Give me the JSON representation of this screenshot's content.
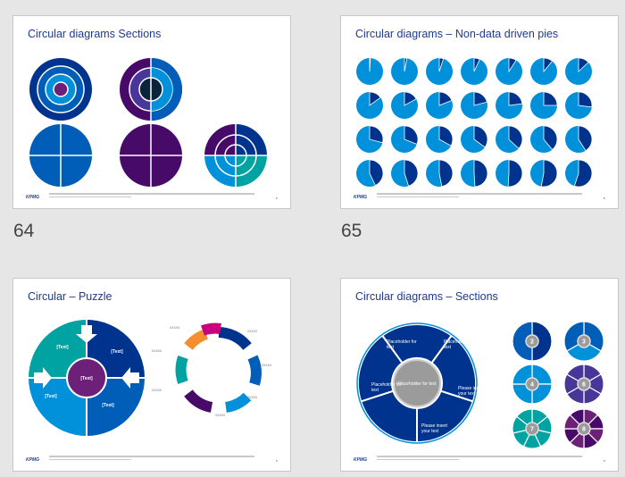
{
  "slides": [
    {
      "number": "64",
      "title": "Circular diagrams Sections"
    },
    {
      "number": "65",
      "title": "Circular diagrams  – Non-data driven pies"
    },
    {
      "number": "",
      "title": "Circular – Puzzle"
    },
    {
      "number": "",
      "title": "Circular diagrams – Sections"
    }
  ],
  "logo": "KPMG",
  "puzzle": {
    "piece_label": "[Text]",
    "arrow_label": "xxxxx"
  },
  "sections": {
    "segments": [
      "Placeholder for text",
      "Placeholder for text",
      "Please insert your text",
      "Please insert your text",
      "Placeholder for text"
    ],
    "center": "Placeholder for text",
    "small_numbers": [
      "2",
      "3",
      "4",
      "6",
      "7",
      "8"
    ]
  },
  "colors": {
    "navy": "#00338d",
    "blue": "#005eb8",
    "light_blue": "#0091da",
    "purple": "#470a68",
    "violet": "#483698",
    "teal": "#00a3a1"
  },
  "pies": {
    "color": "#0091da",
    "slice_color": "#00338d",
    "fractions": [
      0.01,
      0.03,
      0.05,
      0.07,
      0.09,
      0.11,
      0.13,
      0.15,
      0.17,
      0.19,
      0.21,
      0.23,
      0.25,
      0.27,
      0.29,
      0.31,
      0.33,
      0.35,
      0.37,
      0.39,
      0.41,
      0.43,
      0.45,
      0.47,
      0.49,
      0.51,
      0.53,
      0.55
    ]
  }
}
